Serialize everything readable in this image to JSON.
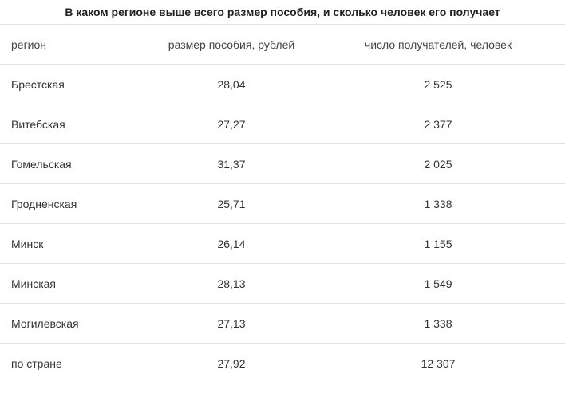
{
  "title": "В каком регионе выше всего размер пособия, и сколько человек его получает",
  "columns": {
    "region": "регион",
    "amount": "размер пособия, рублей",
    "count": "число получателей, человек"
  },
  "rows": [
    {
      "region": "Брестская",
      "amount": "28,04",
      "count": "2 525"
    },
    {
      "region": "Витебская",
      "amount": "27,27",
      "count": "2 377"
    },
    {
      "region": "Гомельская",
      "amount": "31,37",
      "count": "2 025"
    },
    {
      "region": "Гродненская",
      "amount": "25,71",
      "count": "1 338"
    },
    {
      "region": "Минск",
      "amount": "26,14",
      "count": "1 155"
    },
    {
      "region": "Минская",
      "amount": "28,13",
      "count": "1 549"
    },
    {
      "region": "Могилевская",
      "amount": "27,13",
      "count": "1 338"
    },
    {
      "region": "по стране",
      "amount": "27,92",
      "count": "12 307"
    }
  ]
}
